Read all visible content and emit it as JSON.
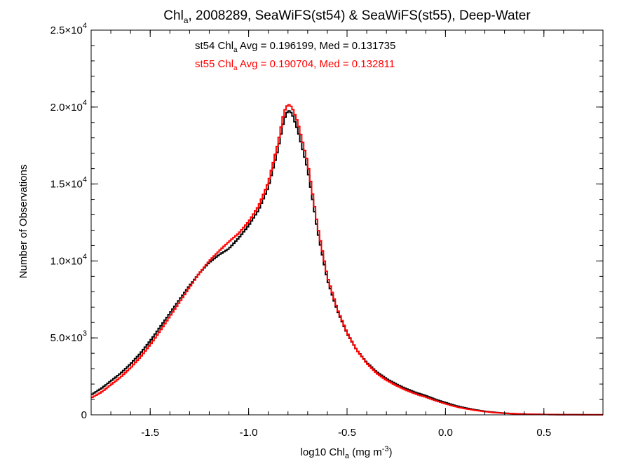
{
  "chart_data": {
    "type": "line",
    "title": {
      "prefix": "Chl",
      "sub": "a",
      "suffix": ", 2008289, SeaWiFS(st54) & SeaWiFS(st55), Deep-Water"
    },
    "xlabel": {
      "prefix": "log10 Chl",
      "sub": "a",
      "mid": " (mg m",
      "sup": "-3",
      "suffix": ")"
    },
    "ylabel": "Number of Observations",
    "xlim": [
      -1.8,
      0.8
    ],
    "ylim": [
      0,
      25000
    ],
    "x_ticks": [
      {
        "value": -1.5,
        "label": "-1.5"
      },
      {
        "value": -1.0,
        "label": "-1.0"
      },
      {
        "value": -0.5,
        "label": "-0.5"
      },
      {
        "value": 0.0,
        "label": "0.0"
      },
      {
        "value": 0.5,
        "label": "0.5"
      }
    ],
    "y_ticks": [
      {
        "value": 0,
        "label": "0",
        "mant": "",
        "exp": ""
      },
      {
        "value": 5000,
        "label": "",
        "mant": "5.0×10",
        "exp": "3"
      },
      {
        "value": 10000,
        "label": "",
        "mant": "1.0×10",
        "exp": "4"
      },
      {
        "value": 15000,
        "label": "",
        "mant": "1.5×10",
        "exp": "4"
      },
      {
        "value": 20000,
        "label": "",
        "mant": "2.0×10",
        "exp": "4"
      },
      {
        "value": 25000,
        "label": "",
        "mant": "2.5×10",
        "exp": "4"
      }
    ],
    "x_minor_step": 0.1,
    "y_minor_step": 1000,
    "annotations": [
      {
        "prefix": "st54 Chl",
        "sub": "a",
        "suffix": " Avg = 0.196199, Med = 0.131735",
        "color": "#000000"
      },
      {
        "prefix": "st55 Chl",
        "sub": "a",
        "suffix": " Avg = 0.190704, Med = 0.132811",
        "color": "#ff0000"
      }
    ],
    "series": [
      {
        "color": "#000000",
        "points": [
          [
            -1.8,
            1300
          ],
          [
            -1.75,
            1700
          ],
          [
            -1.7,
            2200
          ],
          [
            -1.65,
            2700
          ],
          [
            -1.6,
            3300
          ],
          [
            -1.55,
            4000
          ],
          [
            -1.5,
            4800
          ],
          [
            -1.45,
            5700
          ],
          [
            -1.4,
            6600
          ],
          [
            -1.35,
            7500
          ],
          [
            -1.3,
            8400
          ],
          [
            -1.25,
            9200
          ],
          [
            -1.2,
            9900
          ],
          [
            -1.15,
            10400
          ],
          [
            -1.1,
            10800
          ],
          [
            -1.05,
            11500
          ],
          [
            -1.0,
            12300
          ],
          [
            -0.95,
            13300
          ],
          [
            -0.9,
            14800
          ],
          [
            -0.85,
            17300
          ],
          [
            -0.82,
            19200
          ],
          [
            -0.8,
            19800
          ],
          [
            -0.78,
            19600
          ],
          [
            -0.75,
            18500
          ],
          [
            -0.7,
            16000
          ],
          [
            -0.65,
            12000
          ],
          [
            -0.6,
            8800
          ],
          [
            -0.55,
            6800
          ],
          [
            -0.5,
            5300
          ],
          [
            -0.45,
            4200
          ],
          [
            -0.4,
            3400
          ],
          [
            -0.35,
            2800
          ],
          [
            -0.3,
            2350
          ],
          [
            -0.25,
            2000
          ],
          [
            -0.2,
            1700
          ],
          [
            -0.15,
            1450
          ],
          [
            -0.1,
            1250
          ],
          [
            -0.05,
            1000
          ],
          [
            0.0,
            800
          ],
          [
            0.05,
            600
          ],
          [
            0.1,
            450
          ],
          [
            0.15,
            330
          ],
          [
            0.2,
            230
          ],
          [
            0.25,
            160
          ],
          [
            0.3,
            110
          ],
          [
            0.35,
            75
          ],
          [
            0.4,
            50
          ],
          [
            0.45,
            35
          ],
          [
            0.5,
            25
          ],
          [
            0.6,
            12
          ],
          [
            0.7,
            6
          ],
          [
            0.8,
            3
          ]
        ]
      },
      {
        "color": "#ff0000",
        "points": [
          [
            -1.8,
            1100
          ],
          [
            -1.75,
            1450
          ],
          [
            -1.7,
            1950
          ],
          [
            -1.65,
            2450
          ],
          [
            -1.6,
            3050
          ],
          [
            -1.55,
            3750
          ],
          [
            -1.5,
            4550
          ],
          [
            -1.45,
            5450
          ],
          [
            -1.4,
            6400
          ],
          [
            -1.35,
            7350
          ],
          [
            -1.3,
            8300
          ],
          [
            -1.25,
            9200
          ],
          [
            -1.2,
            10000
          ],
          [
            -1.15,
            10650
          ],
          [
            -1.1,
            11250
          ],
          [
            -1.05,
            11800
          ],
          [
            -1.0,
            12550
          ],
          [
            -0.95,
            13550
          ],
          [
            -0.9,
            15100
          ],
          [
            -0.85,
            17700
          ],
          [
            -0.82,
            19700
          ],
          [
            -0.8,
            20200
          ],
          [
            -0.78,
            20000
          ],
          [
            -0.75,
            19000
          ],
          [
            -0.7,
            16400
          ],
          [
            -0.65,
            12300
          ],
          [
            -0.6,
            9000
          ],
          [
            -0.55,
            6900
          ],
          [
            -0.5,
            5350
          ],
          [
            -0.45,
            4200
          ],
          [
            -0.4,
            3350
          ],
          [
            -0.35,
            2700
          ],
          [
            -0.3,
            2250
          ],
          [
            -0.25,
            1900
          ],
          [
            -0.2,
            1600
          ],
          [
            -0.15,
            1350
          ],
          [
            -0.1,
            1150
          ],
          [
            -0.05,
            920
          ],
          [
            0.0,
            720
          ],
          [
            0.05,
            540
          ],
          [
            0.1,
            400
          ],
          [
            0.15,
            300
          ],
          [
            0.2,
            210
          ],
          [
            0.25,
            145
          ],
          [
            0.3,
            100
          ],
          [
            0.35,
            70
          ],
          [
            0.4,
            48
          ],
          [
            0.45,
            33
          ],
          [
            0.5,
            23
          ],
          [
            0.6,
            11
          ],
          [
            0.7,
            5
          ],
          [
            0.8,
            2
          ]
        ]
      }
    ]
  }
}
